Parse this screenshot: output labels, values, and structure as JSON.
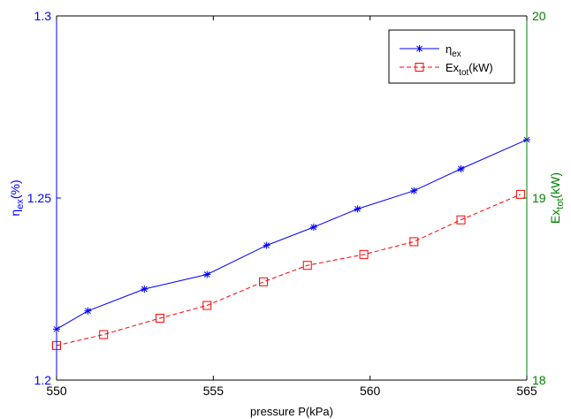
{
  "chart_data": {
    "type": "line",
    "xlabel": "pressure P(kPa)",
    "xlim": [
      550,
      565
    ],
    "xticks": [
      "550",
      "555",
      "560",
      "565"
    ],
    "y_left": {
      "label": "η",
      "label_sub": "ex",
      "label_suffix": "(%)",
      "lim": [
        1.2,
        1.3
      ],
      "ticks": [
        "1.2",
        "1.25",
        "1.3"
      ],
      "color": "#0000ff"
    },
    "y_right": {
      "label": "Ex",
      "label_sub": "tot",
      "label_suffix": "(kW)",
      "lim": [
        18,
        20
      ],
      "ticks": [
        "18",
        "19",
        "20"
      ],
      "color": "#008000"
    },
    "legend_position": "top-right",
    "grid": false,
    "series": [
      {
        "name": "η",
        "name_sub": "ex",
        "name_suffix": "",
        "axis": "left",
        "color": "#0000ff",
        "marker": "asterisk",
        "dash": "solid",
        "x": [
          550.0,
          551.0,
          552.8,
          554.8,
          556.7,
          558.2,
          559.6,
          561.4,
          562.9,
          565.0
        ],
        "y": [
          1.214,
          1.219,
          1.225,
          1.229,
          1.237,
          1.242,
          1.247,
          1.252,
          1.258,
          1.266
        ]
      },
      {
        "name": "Ex",
        "name_sub": "tot",
        "name_suffix": "(kW)",
        "axis": "right",
        "color": "#ff0000",
        "marker": "square",
        "dash": "dashed",
        "x": [
          550.0,
          551.5,
          553.3,
          554.8,
          556.6,
          558.0,
          559.8,
          561.4,
          562.9,
          564.8
        ],
        "y": [
          18.19,
          18.25,
          18.34,
          18.41,
          18.54,
          18.63,
          18.69,
          18.76,
          18.88,
          19.02
        ]
      }
    ]
  }
}
